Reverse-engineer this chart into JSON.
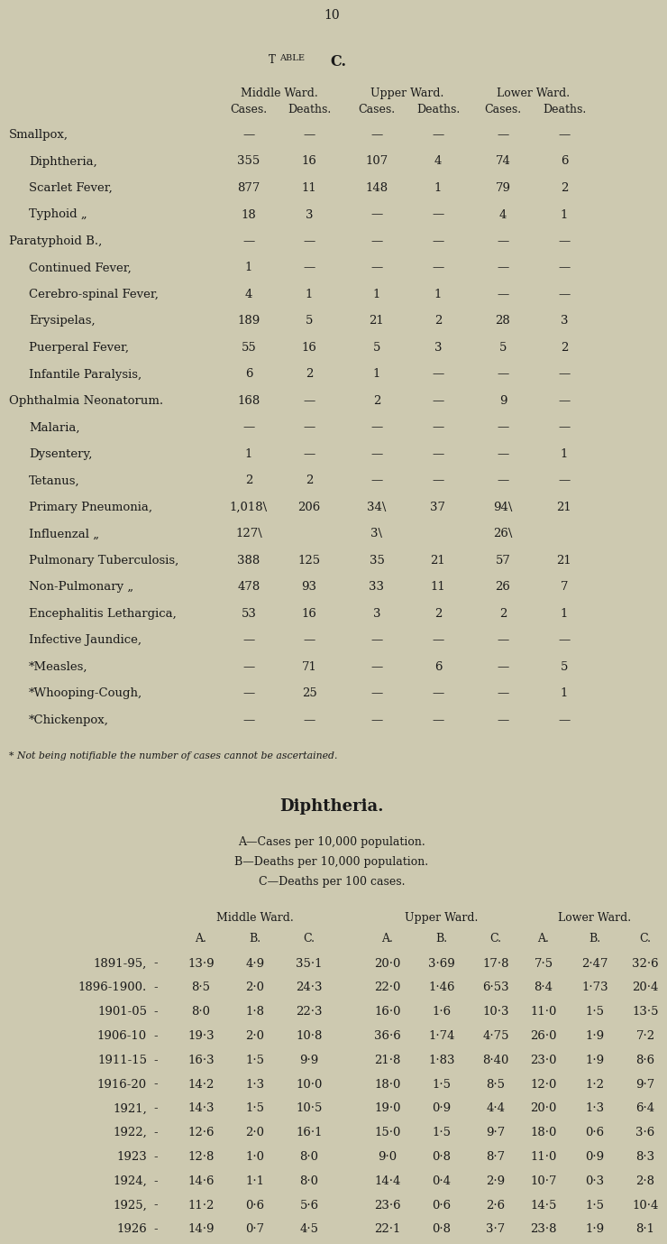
{
  "page_number": "10",
  "bg_color": "#cdc9b0",
  "text_color": "#1a1a1a",
  "table1": {
    "rows": [
      [
        "Smallpox,",
        "—",
        "—",
        "—",
        "—",
        "—",
        "—"
      ],
      [
        "Diphtheria,",
        "355",
        "16",
        "107",
        "4",
        "74",
        "6"
      ],
      [
        "Scarlet Fever,",
        "877",
        "11",
        "148",
        "1",
        "79",
        "2"
      ],
      [
        "Typhoid „",
        "18",
        "3",
        "—",
        "—",
        "4",
        "1"
      ],
      [
        "Paratyphoid B.,",
        "—",
        "—",
        "—",
        "—",
        "—",
        "—"
      ],
      [
        "Continued Fever,",
        "1",
        "—",
        "—",
        "—",
        "—",
        "—"
      ],
      [
        "Cerebro-spinal Fever,",
        "4",
        "1",
        "1",
        "1",
        "—",
        "—"
      ],
      [
        "Erysipelas,",
        "189",
        "5",
        "21",
        "2",
        "28",
        "3"
      ],
      [
        "Puerperal Fever,",
        "55",
        "16",
        "5",
        "3",
        "5",
        "2"
      ],
      [
        "Infantile Paralysis,",
        "6",
        "2",
        "1",
        "—",
        "—",
        "—"
      ],
      [
        "Ophthalmia Neonatorum.",
        "168",
        "—",
        "2",
        "—",
        "9",
        "—"
      ],
      [
        "Malaria,",
        "—",
        "—",
        "—",
        "—",
        "—",
        "—"
      ],
      [
        "Dysentery,",
        "1",
        "—",
        "—",
        "—",
        "—",
        "1"
      ],
      [
        "Tetanus,",
        "2",
        "2",
        "—",
        "—",
        "—",
        "—"
      ],
      [
        "Primary Pneumonia,",
        "1,018}",
        "206",
        "34}",
        "37",
        "94}",
        "21"
      ],
      [
        "Influenzal „",
        "127}",
        "",
        "3}",
        "",
        "26}",
        ""
      ],
      [
        "Pulmonary Tuberculosis,",
        "388",
        "125",
        "35",
        "21",
        "57",
        "21"
      ],
      [
        "Non-Pulmonary „",
        "478",
        "93",
        "33",
        "11",
        "26",
        "7"
      ],
      [
        "Encephalitis Lethargica,",
        "53",
        "16",
        "3",
        "2",
        "2",
        "1"
      ],
      [
        "Infective Jaundice,",
        "—",
        "—",
        "—",
        "—",
        "—",
        "—"
      ],
      [
        "*Measles,",
        "—",
        "71",
        "—",
        "6",
        "—",
        "5"
      ],
      [
        "*Whooping-Cough,",
        "—",
        "25",
        "—",
        "—",
        "—",
        "1"
      ],
      [
        "*Chickenpox,",
        "—",
        "—",
        "—",
        "—",
        "—",
        "—"
      ]
    ],
    "footnote": "* Not being notifiable the number of cases cannot be ascertained."
  },
  "table2": {
    "subtitles": [
      "A—Cases per 10,000 population.",
      "B—Deaths per 10,000 population.",
      "C—Deaths per 100 cases."
    ],
    "rows": [
      [
        "1891-95,",
        "13·9",
        "4·9",
        "35·1",
        "20·0",
        "3·69",
        "17·8",
        "7·5",
        "2·47",
        "32·6"
      ],
      [
        "1896-1900.",
        "8·5",
        "2·0",
        "24·3",
        "22·0",
        "1·46",
        "6·53",
        "8·4",
        "1·73",
        "20·4"
      ],
      [
        "1901-05",
        "8·0",
        "1·8",
        "22·3",
        "16·0",
        "1·6",
        "10·3",
        "11·0",
        "1·5",
        "13·5"
      ],
      [
        "1906-10",
        "19·3",
        "2·0",
        "10·8",
        "36·6",
        "1·74",
        "4·75",
        "26·0",
        "1·9",
        "7·2"
      ],
      [
        "1911-15",
        "16·3",
        "1·5",
        "9·9",
        "21·8",
        "1·83",
        "8·40",
        "23·0",
        "1·9",
        "8·6"
      ],
      [
        "1916-20",
        "14·2",
        "1·3",
        "10·0",
        "18·0",
        "1·5",
        "8·5",
        "12·0",
        "1·2",
        "9·7"
      ],
      [
        "1921,",
        "14·3",
        "1·5",
        "10·5",
        "19·0",
        "0·9",
        "4·4",
        "20·0",
        "1·3",
        "6·4"
      ],
      [
        "1922,",
        "12·6",
        "2·0",
        "16·1",
        "15·0",
        "1·5",
        "9·7",
        "18·0",
        "0·6",
        "3·6"
      ],
      [
        "1923",
        "12·8",
        "1·0",
        "8·0",
        "9·0",
        "0·8",
        "8·7",
        "11·0",
        "0·9",
        "8·3"
      ],
      [
        "1924,",
        "14·6",
        "1·1",
        "8·0",
        "14·4",
        "0·4",
        "2·9",
        "10·7",
        "0·3",
        "2·8"
      ],
      [
        "1925,",
        "11·2",
        "0·6",
        "5·6",
        "23·6",
        "0·6",
        "2·6",
        "14·5",
        "1·5",
        "10·4"
      ],
      [
        "1926",
        "14·9",
        "0·7",
        "4·5",
        "22·1",
        "0·8",
        "3·7",
        "23·8",
        "1·9",
        "8·1"
      ]
    ]
  }
}
